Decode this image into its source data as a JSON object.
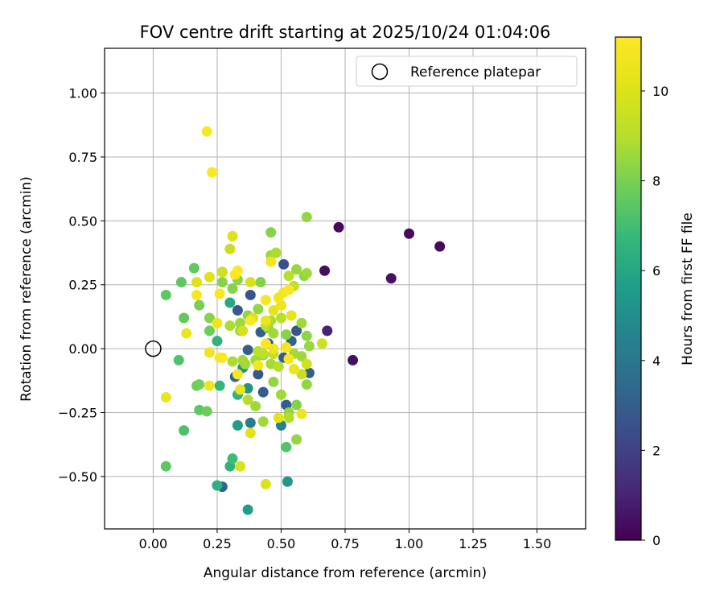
{
  "chart_data": {
    "type": "scatter",
    "title": "FOV centre drift starting at 2025/10/24 01:04:06",
    "xlabel": "Angular distance from reference (arcmin)",
    "ylabel": "Rotation from reference (arcmin)",
    "xlim": [
      -0.19,
      1.69
    ],
    "ylim": [
      -0.705,
      1.175
    ],
    "xticks": [
      0.0,
      0.25,
      0.5,
      0.75,
      1.0,
      1.25,
      1.5
    ],
    "xtick_labels": [
      "0.00",
      "0.25",
      "0.50",
      "0.75",
      "1.00",
      "1.25",
      "1.50"
    ],
    "yticks": [
      -0.5,
      -0.25,
      0.0,
      0.25,
      0.5,
      0.75,
      1.0
    ],
    "ytick_labels": [
      "−0.50",
      "−0.25",
      "0.00",
      "0.25",
      "0.50",
      "0.75",
      "1.00"
    ],
    "grid": true,
    "legend": {
      "position": "top-right",
      "entries": [
        {
          "label": "Reference platepar",
          "marker": "open-circle",
          "x": 0,
          "y": 0
        }
      ]
    },
    "colorbar": {
      "label": "Hours from first FF file",
      "range": [
        0,
        11.2
      ],
      "ticks": [
        0,
        2,
        4,
        6,
        8,
        10
      ],
      "tick_labels": [
        "0",
        "2",
        "4",
        "6",
        "8",
        "10"
      ],
      "colormap": "viridis"
    },
    "points": [
      [
        0.67,
        0.305,
        0.4
      ],
      [
        0.725,
        0.475,
        0.2
      ],
      [
        1.0,
        0.45,
        0.3
      ],
      [
        1.12,
        0.4,
        0.2
      ],
      [
        0.93,
        0.275,
        0.5
      ],
      [
        0.78,
        -0.045,
        0.4
      ],
      [
        0.68,
        0.07,
        1.0
      ],
      [
        0.51,
        0.33,
        2.5
      ],
      [
        0.38,
        0.21,
        2.6
      ],
      [
        0.33,
        0.15,
        2.8
      ],
      [
        0.42,
        0.065,
        3.0
      ],
      [
        0.37,
        -0.005,
        3.0
      ],
      [
        0.51,
        -0.035,
        3.0
      ],
      [
        0.41,
        -0.1,
        2.7
      ],
      [
        0.61,
        -0.095,
        3.0
      ],
      [
        0.56,
        0.07,
        2.7
      ],
      [
        0.54,
        0.03,
        3.2
      ],
      [
        0.45,
        0.02,
        2.9
      ],
      [
        0.32,
        -0.11,
        3.2
      ],
      [
        0.43,
        -0.17,
        3.0
      ],
      [
        0.52,
        -0.22,
        3.0
      ],
      [
        0.5,
        -0.3,
        4.4
      ],
      [
        0.27,
        -0.54,
        3.2
      ],
      [
        0.38,
        -0.29,
        4.2
      ],
      [
        0.35,
        -0.075,
        5.0
      ],
      [
        0.37,
        -0.155,
        5.2
      ],
      [
        0.33,
        -0.3,
        5.5
      ],
      [
        0.3,
        0.18,
        6.0
      ],
      [
        0.33,
        -0.18,
        6.5
      ],
      [
        0.37,
        -0.63,
        5.6
      ],
      [
        0.525,
        -0.52,
        5.3
      ],
      [
        0.25,
        -0.535,
        6.4
      ],
      [
        0.3,
        -0.46,
        6.5
      ],
      [
        0.25,
        0.03,
        6.5
      ],
      [
        0.26,
        -0.145,
        6.7
      ],
      [
        0.31,
        -0.43,
        6.9
      ],
      [
        0.52,
        -0.385,
        7.3
      ],
      [
        0.12,
        -0.32,
        7.2
      ],
      [
        0.05,
        -0.46,
        7.5
      ],
      [
        0.1,
        -0.045,
        7.2
      ],
      [
        0.17,
        -0.145,
        7.8
      ],
      [
        0.18,
        -0.24,
        7.5
      ],
      [
        0.11,
        0.26,
        7.5
      ],
      [
        0.05,
        0.21,
        7.5
      ],
      [
        0.16,
        0.315,
        7.6
      ],
      [
        0.12,
        0.12,
        7.6
      ],
      [
        0.18,
        0.17,
        8.0
      ],
      [
        0.22,
        0.07,
        7.8
      ],
      [
        0.21,
        -0.245,
        7.8
      ],
      [
        0.18,
        -0.14,
        7.9
      ],
      [
        0.22,
        0.12,
        8.2
      ],
      [
        0.27,
        0.26,
        8.2
      ],
      [
        0.31,
        0.235,
        8.2
      ],
      [
        0.27,
        0.3,
        8.3
      ],
      [
        0.33,
        0.27,
        8.3
      ],
      [
        0.37,
        0.13,
        8.4
      ],
      [
        0.34,
        0.07,
        8.6
      ],
      [
        0.42,
        0.26,
        8.2
      ],
      [
        0.41,
        0.155,
        8.4
      ],
      [
        0.45,
        0.08,
        8.4
      ],
      [
        0.43,
        -0.025,
        8.2
      ],
      [
        0.4,
        -0.045,
        8.6
      ],
      [
        0.36,
        -0.06,
        8.7
      ],
      [
        0.46,
        -0.06,
        8.7
      ],
      [
        0.47,
        -0.13,
        8.4
      ],
      [
        0.5,
        -0.18,
        8.6
      ],
      [
        0.53,
        -0.25,
        8.4
      ],
      [
        0.56,
        -0.22,
        8.2
      ],
      [
        0.6,
        -0.14,
        8.4
      ],
      [
        0.58,
        -0.03,
        8.6
      ],
      [
        0.55,
        -0.02,
        8.7
      ],
      [
        0.58,
        0.1,
        8.6
      ],
      [
        0.61,
        0.01,
        8.5
      ],
      [
        0.6,
        0.05,
        8.3
      ],
      [
        0.52,
        0.055,
        8.2
      ],
      [
        0.47,
        0.06,
        8.6
      ],
      [
        0.46,
        0.11,
        8.8
      ],
      [
        0.46,
        0.365,
        8.6
      ],
      [
        0.48,
        0.375,
        8.8
      ],
      [
        0.46,
        0.455,
        8.2
      ],
      [
        0.6,
        0.515,
        8.4
      ],
      [
        0.6,
        0.295,
        8.6
      ],
      [
        0.59,
        0.285,
        8.3
      ],
      [
        0.56,
        0.31,
        8.5
      ],
      [
        0.53,
        0.285,
        9.0
      ],
      [
        0.55,
        0.245,
        9.3
      ],
      [
        0.35,
        -0.045,
        8.7
      ],
      [
        0.31,
        -0.05,
        8.8
      ],
      [
        0.4,
        -0.225,
        8.6
      ],
      [
        0.37,
        -0.2,
        9.0
      ],
      [
        0.43,
        -0.285,
        8.6
      ],
      [
        0.56,
        -0.355,
        8.4
      ],
      [
        0.53,
        -0.27,
        8.9
      ],
      [
        0.34,
        0.1,
        8.6
      ],
      [
        0.3,
        0.09,
        8.8
      ],
      [
        0.41,
        -0.01,
        9.2
      ],
      [
        0.43,
        -0.02,
        9.2
      ],
      [
        0.44,
        0.09,
        9.2
      ],
      [
        0.5,
        0.12,
        9.1
      ],
      [
        0.47,
        -0.02,
        9.3
      ],
      [
        0.49,
        -0.07,
        9.0
      ],
      [
        0.58,
        -0.1,
        9.4
      ],
      [
        0.6,
        -0.06,
        9.7
      ],
      [
        0.66,
        0.02,
        9.6
      ],
      [
        0.3,
        0.39,
        9.5
      ],
      [
        0.31,
        0.44,
        10.0
      ],
      [
        0.27,
        0.3,
        9.6
      ],
      [
        0.22,
        0.28,
        10.0
      ],
      [
        0.17,
        0.26,
        10.0
      ],
      [
        0.38,
        0.26,
        9.8
      ],
      [
        0.35,
        0.07,
        9.8
      ],
      [
        0.39,
        0.12,
        10.0
      ],
      [
        0.44,
        0.11,
        10.5
      ],
      [
        0.5,
        0.17,
        10.6
      ],
      [
        0.49,
        0.2,
        10.8
      ],
      [
        0.47,
        0.15,
        10.4
      ],
      [
        0.53,
        0.23,
        11.0
      ],
      [
        0.51,
        0.22,
        10.8
      ],
      [
        0.54,
        0.13,
        10.4
      ],
      [
        0.46,
        0.34,
        10.8
      ],
      [
        0.44,
        0.19,
        11.0
      ],
      [
        0.44,
        0.02,
        11.1
      ],
      [
        0.52,
        0.005,
        10.9
      ],
      [
        0.47,
        0.0,
        10.6
      ],
      [
        0.53,
        -0.04,
        11.0
      ],
      [
        0.55,
        -0.08,
        10.5
      ],
      [
        0.49,
        -0.27,
        10.3
      ],
      [
        0.58,
        -0.255,
        10.6
      ],
      [
        0.44,
        -0.53,
        10.0
      ],
      [
        0.38,
        -0.33,
        10.2
      ],
      [
        0.34,
        -0.46,
        9.8
      ],
      [
        0.34,
        -0.16,
        10.5
      ],
      [
        0.33,
        -0.1,
        11.0
      ],
      [
        0.41,
        -0.065,
        10.9
      ],
      [
        0.26,
        -0.035,
        11.0
      ],
      [
        0.22,
        -0.015,
        10.6
      ],
      [
        0.22,
        -0.145,
        10.6
      ],
      [
        0.05,
        -0.19,
        10.5
      ],
      [
        0.13,
        0.06,
        10.5
      ],
      [
        0.25,
        0.1,
        10.6
      ],
      [
        0.26,
        0.215,
        11.0
      ],
      [
        0.17,
        0.21,
        11.0
      ],
      [
        0.32,
        0.29,
        11.0
      ],
      [
        0.33,
        0.305,
        11.2
      ],
      [
        0.23,
        0.69,
        11.1
      ],
      [
        0.21,
        0.85,
        11.1
      ],
      [
        0.27,
        -0.035,
        11.1
      ],
      [
        0.38,
        0.11,
        11.1
      ]
    ]
  }
}
